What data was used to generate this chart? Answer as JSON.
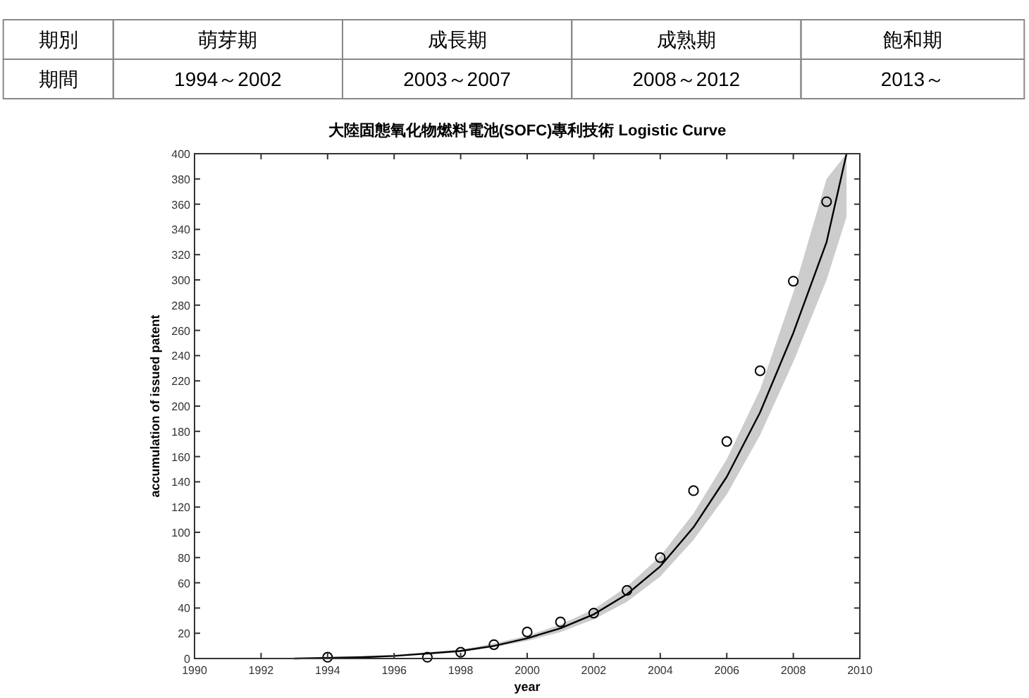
{
  "chart_data": {
    "type": "scatter",
    "title": "大陸固態氧化物燃料電池(SOFC)專利技術 Logistic Curve",
    "xlabel": "year",
    "ylabel": "accumulation of issued patent",
    "annotations": [
      "期別",
      "萌芽期",
      "成長期",
      "成熟期",
      "飽和期",
      "期間",
      "1994～2002",
      "2003～2007",
      "2008～2012",
      "2013～"
    ],
    "series": [
      {
        "type": "line",
        "color": "#000000",
        "line_style": "solid",
        "x": [
          1993,
          1995,
          1996,
          1997,
          1998,
          1999,
          2000,
          2001,
          2002,
          2003,
          2004,
          2005,
          2006,
          2007,
          2008,
          2009,
          2009.6
        ],
        "values": [
          0,
          1,
          2,
          4,
          6,
          10,
          16,
          24,
          35,
          51,
          73,
          104,
          144,
          195,
          258,
          330,
          400
        ],
        "lower": [
          0,
          1,
          2,
          3,
          5,
          9,
          14,
          21,
          31,
          45,
          65,
          94,
          130,
          177,
          235,
          300,
          350
        ],
        "upper": [
          0,
          2,
          3,
          5,
          7,
          12,
          18,
          27,
          39,
          57,
          81,
          115,
          158,
          213,
          290,
          380,
          400
        ]
      },
      {
        "color": "#000000",
        "marker": "circle",
        "x": [
          1994,
          1997,
          1998,
          1999,
          2000,
          2001,
          2002,
          2003,
          2004,
          2005,
          2006,
          2007,
          2008,
          2009
        ],
        "values": [
          1,
          1,
          5,
          11,
          21,
          29,
          36,
          54,
          80,
          133,
          172,
          228,
          299,
          362
        ]
      }
    ],
    "xlim": [
      1990,
      2010
    ],
    "xticks": [
      1990,
      1992,
      1994,
      1996,
      1998,
      2000,
      2002,
      2004,
      2006,
      2008,
      2010
    ],
    "ylim": [
      0,
      400
    ],
    "yticks": [
      0,
      20,
      40,
      60,
      80,
      100,
      120,
      140,
      160,
      180,
      200,
      220,
      240,
      260,
      280,
      300,
      320,
      340,
      360,
      380,
      400
    ],
    "grid": false
  }
}
